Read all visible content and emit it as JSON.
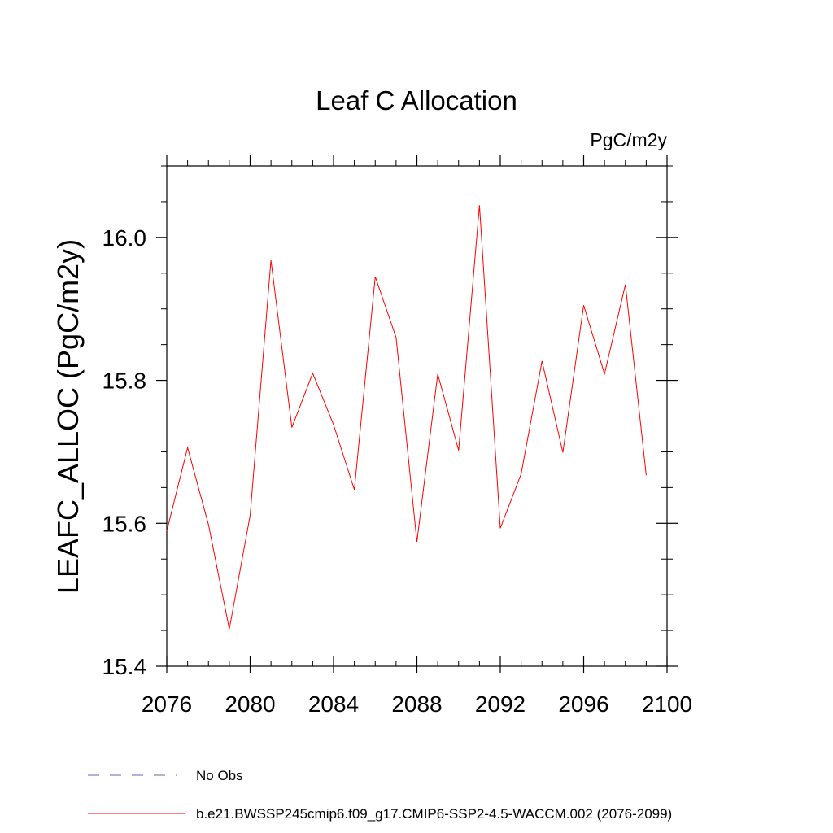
{
  "chart_data": {
    "type": "line",
    "title": "Leaf C Allocation",
    "units_label": "PgC/m2y",
    "ylabel": "LEAFC_ALLOC  (PgC/m2y)",
    "xlabel": "",
    "xlim": [
      2076,
      2100
    ],
    "ylim": [
      15.4,
      16.1
    ],
    "x_ticks": [
      2076,
      2080,
      2084,
      2088,
      2092,
      2096,
      2100
    ],
    "x_tick_labels": [
      "2076",
      "2080",
      "2084",
      "2088",
      "2092",
      "2096",
      "2100"
    ],
    "x_minor_step": 1,
    "y_ticks": [
      15.4,
      15.6,
      15.8,
      16.0
    ],
    "y_tick_labels": [
      "15.4",
      "15.6",
      "15.8",
      "16.0"
    ],
    "y_minor_step": 0.05,
    "grid": false,
    "series": [
      {
        "name": "b.e21.BWSSP245cmip6.f09_g17.CMIP6-SSP2-4.5-WACCM.002 (2076-2099)",
        "color": "#ff0000",
        "x": [
          2076,
          2077,
          2078,
          2079,
          2080,
          2081,
          2082,
          2083,
          2084,
          2085,
          2086,
          2087,
          2088,
          2089,
          2090,
          2091,
          2092,
          2093,
          2094,
          2095,
          2096,
          2097,
          2098,
          2099
        ],
        "values": [
          15.589,
          15.706,
          15.598,
          15.452,
          15.611,
          15.968,
          15.734,
          15.81,
          15.738,
          15.647,
          15.945,
          15.86,
          15.574,
          15.809,
          15.702,
          16.045,
          15.593,
          15.669,
          15.827,
          15.699,
          15.905,
          15.809,
          15.934,
          15.667
        ]
      }
    ],
    "legend": [
      {
        "label": "No Obs",
        "style": "dashed",
        "color": "#6b5fb5"
      },
      {
        "label": "b.e21.BWSSP245cmip6.f09_g17.CMIP6-SSP2-4.5-WACCM.002 (2076-2099)",
        "style": "solid",
        "color": "#ff0000"
      }
    ],
    "legend_position": "bottom-left"
  }
}
